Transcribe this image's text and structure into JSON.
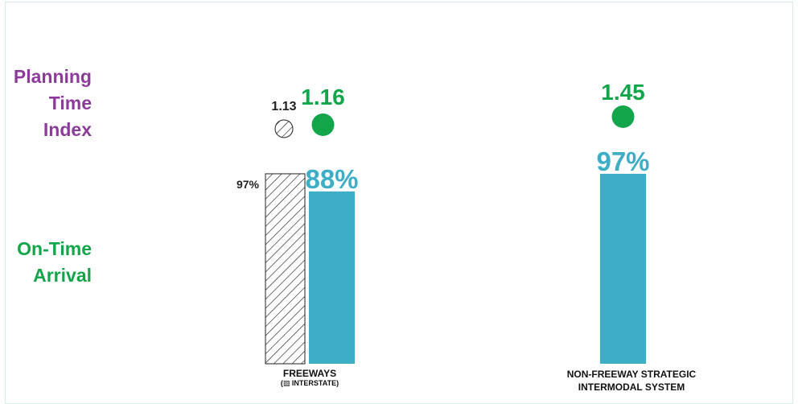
{
  "labels": {
    "planning_time_index": [
      "Planning",
      "Time",
      "Index"
    ],
    "on_time_arrival": [
      "On-Time",
      "Arrival"
    ]
  },
  "colors": {
    "bar": "#3eaec7",
    "dot": "#12a54a",
    "planning_label": "#8c3b9a",
    "on_time_label": "#12a54a",
    "hatch": "#222222"
  },
  "chart_data": {
    "type": "bar",
    "categories": [
      "FREEWAYS",
      "NON-FREEWAY STRATEGIC INTERMODAL SYSTEM"
    ],
    "category_sublabels": [
      "(▨ INTERSTATE)",
      ""
    ],
    "series": [
      {
        "name": "INTERSTATE",
        "pattern": "hatched",
        "on_time_arrival": [
          97,
          null
        ],
        "on_time_labels": [
          "97%",
          ""
        ],
        "planning_time_index": [
          1.13,
          null
        ],
        "pti_labels": [
          "1.13",
          ""
        ]
      },
      {
        "pattern": "solid",
        "on_time_arrival": [
          88,
          97
        ],
        "on_time_labels": [
          "88%",
          "97%"
        ],
        "planning_time_index": [
          1.16,
          1.45
        ],
        "pti_labels": [
          "1.16",
          "1.45"
        ]
      }
    ],
    "ylabel": "On-Time Arrival",
    "ylim": [
      0,
      100
    ],
    "unit": "%"
  }
}
